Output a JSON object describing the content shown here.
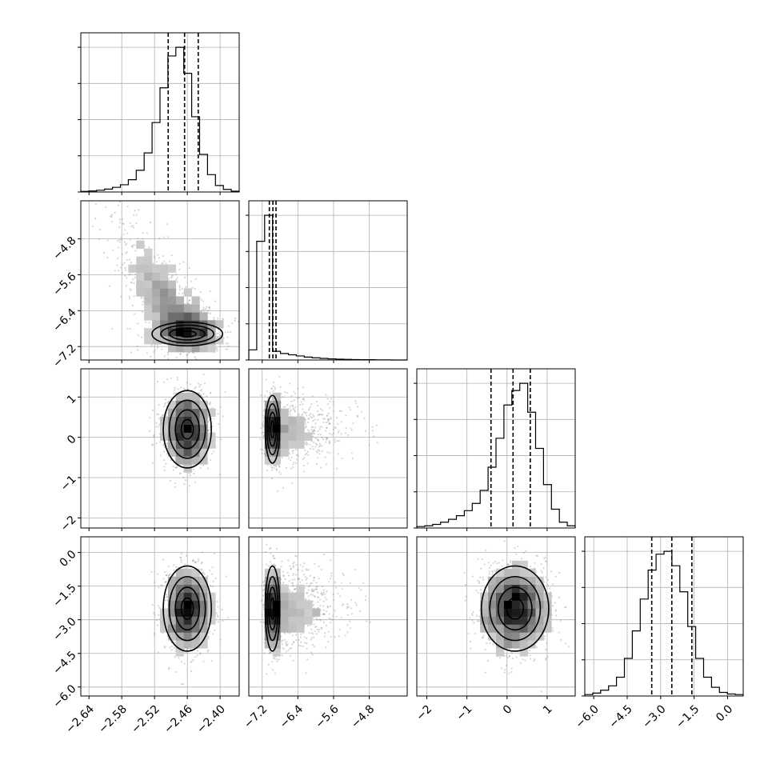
{
  "chart_data": {
    "type": "corner",
    "parameters": [
      {
        "index": 0,
        "range": [
          -2.655,
          -2.365
        ],
        "ticks": [
          -2.64,
          -2.58,
          -2.52,
          -2.46,
          -2.4
        ],
        "tick_labels": [
          "−2.64",
          "−2.58",
          "−2.52",
          "−2.46",
          "−2.40"
        ],
        "quantiles": [
          -2.495,
          -2.465,
          -2.44
        ],
        "histogram": [
          0.004,
          0.007,
          0.012,
          0.02,
          0.032,
          0.05,
          0.085,
          0.15,
          0.27,
          0.48,
          0.72,
          0.94,
          1.0,
          0.82,
          0.52,
          0.26,
          0.12,
          0.045,
          0.018,
          0.006
        ]
      },
      {
        "index": 1,
        "range": [
          -7.5,
          -3.95
        ],
        "ticks": [
          -7.2,
          -6.4,
          -5.6,
          -4.8
        ],
        "tick_labels": [
          "−7.2",
          "−6.4",
          "−5.6",
          "−4.8"
        ],
        "quantiles": [
          -7.04,
          -6.96,
          -6.89
        ],
        "histogram": [
          0.07,
          0.82,
          1.0,
          0.06,
          0.045,
          0.036,
          0.028,
          0.02,
          0.015,
          0.011,
          0.008,
          0.006,
          0.004,
          0.003,
          0.002,
          0.002,
          0.001,
          0.001,
          0.0,
          0.0
        ]
      },
      {
        "index": 2,
        "range": [
          -2.25,
          1.7
        ],
        "ticks": [
          -2,
          -1,
          0,
          1
        ],
        "tick_labels": [
          "−2",
          "−1",
          "0",
          "1"
        ],
        "quantiles": [
          -0.4,
          0.15,
          0.58
        ],
        "histogram": [
          0.01,
          0.015,
          0.025,
          0.04,
          0.06,
          0.085,
          0.12,
          0.17,
          0.26,
          0.42,
          0.62,
          0.85,
          0.95,
          1.0,
          0.8,
          0.55,
          0.3,
          0.13,
          0.04,
          0.015
        ]
      },
      {
        "index": 3,
        "range": [
          -6.4,
          0.7
        ],
        "ticks": [
          -6.0,
          -4.5,
          -3.0,
          -1.5,
          0.0
        ],
        "tick_labels": [
          "−6.0",
          "−4.5",
          "−3.0",
          "−1.5",
          "0.0"
        ],
        "quantiles": [
          -3.4,
          -2.5,
          -1.6
        ],
        "histogram": [
          0.01,
          0.02,
          0.04,
          0.07,
          0.13,
          0.26,
          0.45,
          0.67,
          0.87,
          0.98,
          1.0,
          0.9,
          0.72,
          0.48,
          0.26,
          0.13,
          0.06,
          0.025,
          0.014,
          0.01
        ]
      }
    ],
    "pairs": [
      {
        "row": 1,
        "col": 0,
        "mean": [
          -2.46,
          -6.92
        ],
        "sd": [
          0.034,
          0.24
        ],
        "tail": "param1-upward-tail-negatively-correlated",
        "skew_y": 1.9
      },
      {
        "row": 2,
        "col": 0,
        "mean": [
          -2.46,
          0.2
        ],
        "sd": [
          0.022,
          0.48
        ],
        "tail": "none"
      },
      {
        "row": 2,
        "col": 1,
        "mean": [
          -6.97,
          0.2
        ],
        "sd": [
          0.09,
          0.42
        ],
        "tail": "param1-rightward-tail",
        "skew_x": 2.2
      },
      {
        "row": 3,
        "col": 0,
        "mean": [
          -2.46,
          -2.5
        ],
        "sd": [
          0.022,
          0.95
        ],
        "tail": "none"
      },
      {
        "row": 3,
        "col": 1,
        "mean": [
          -6.97,
          -2.5
        ],
        "sd": [
          0.09,
          0.95
        ],
        "tail": "param1-rightward-tail",
        "skew_x": 2.2
      },
      {
        "row": 3,
        "col": 2,
        "mean": [
          0.2,
          -2.5
        ],
        "sd": [
          0.42,
          0.95
        ],
        "tail": "none"
      }
    ],
    "grid": true,
    "density_levels": 4
  }
}
